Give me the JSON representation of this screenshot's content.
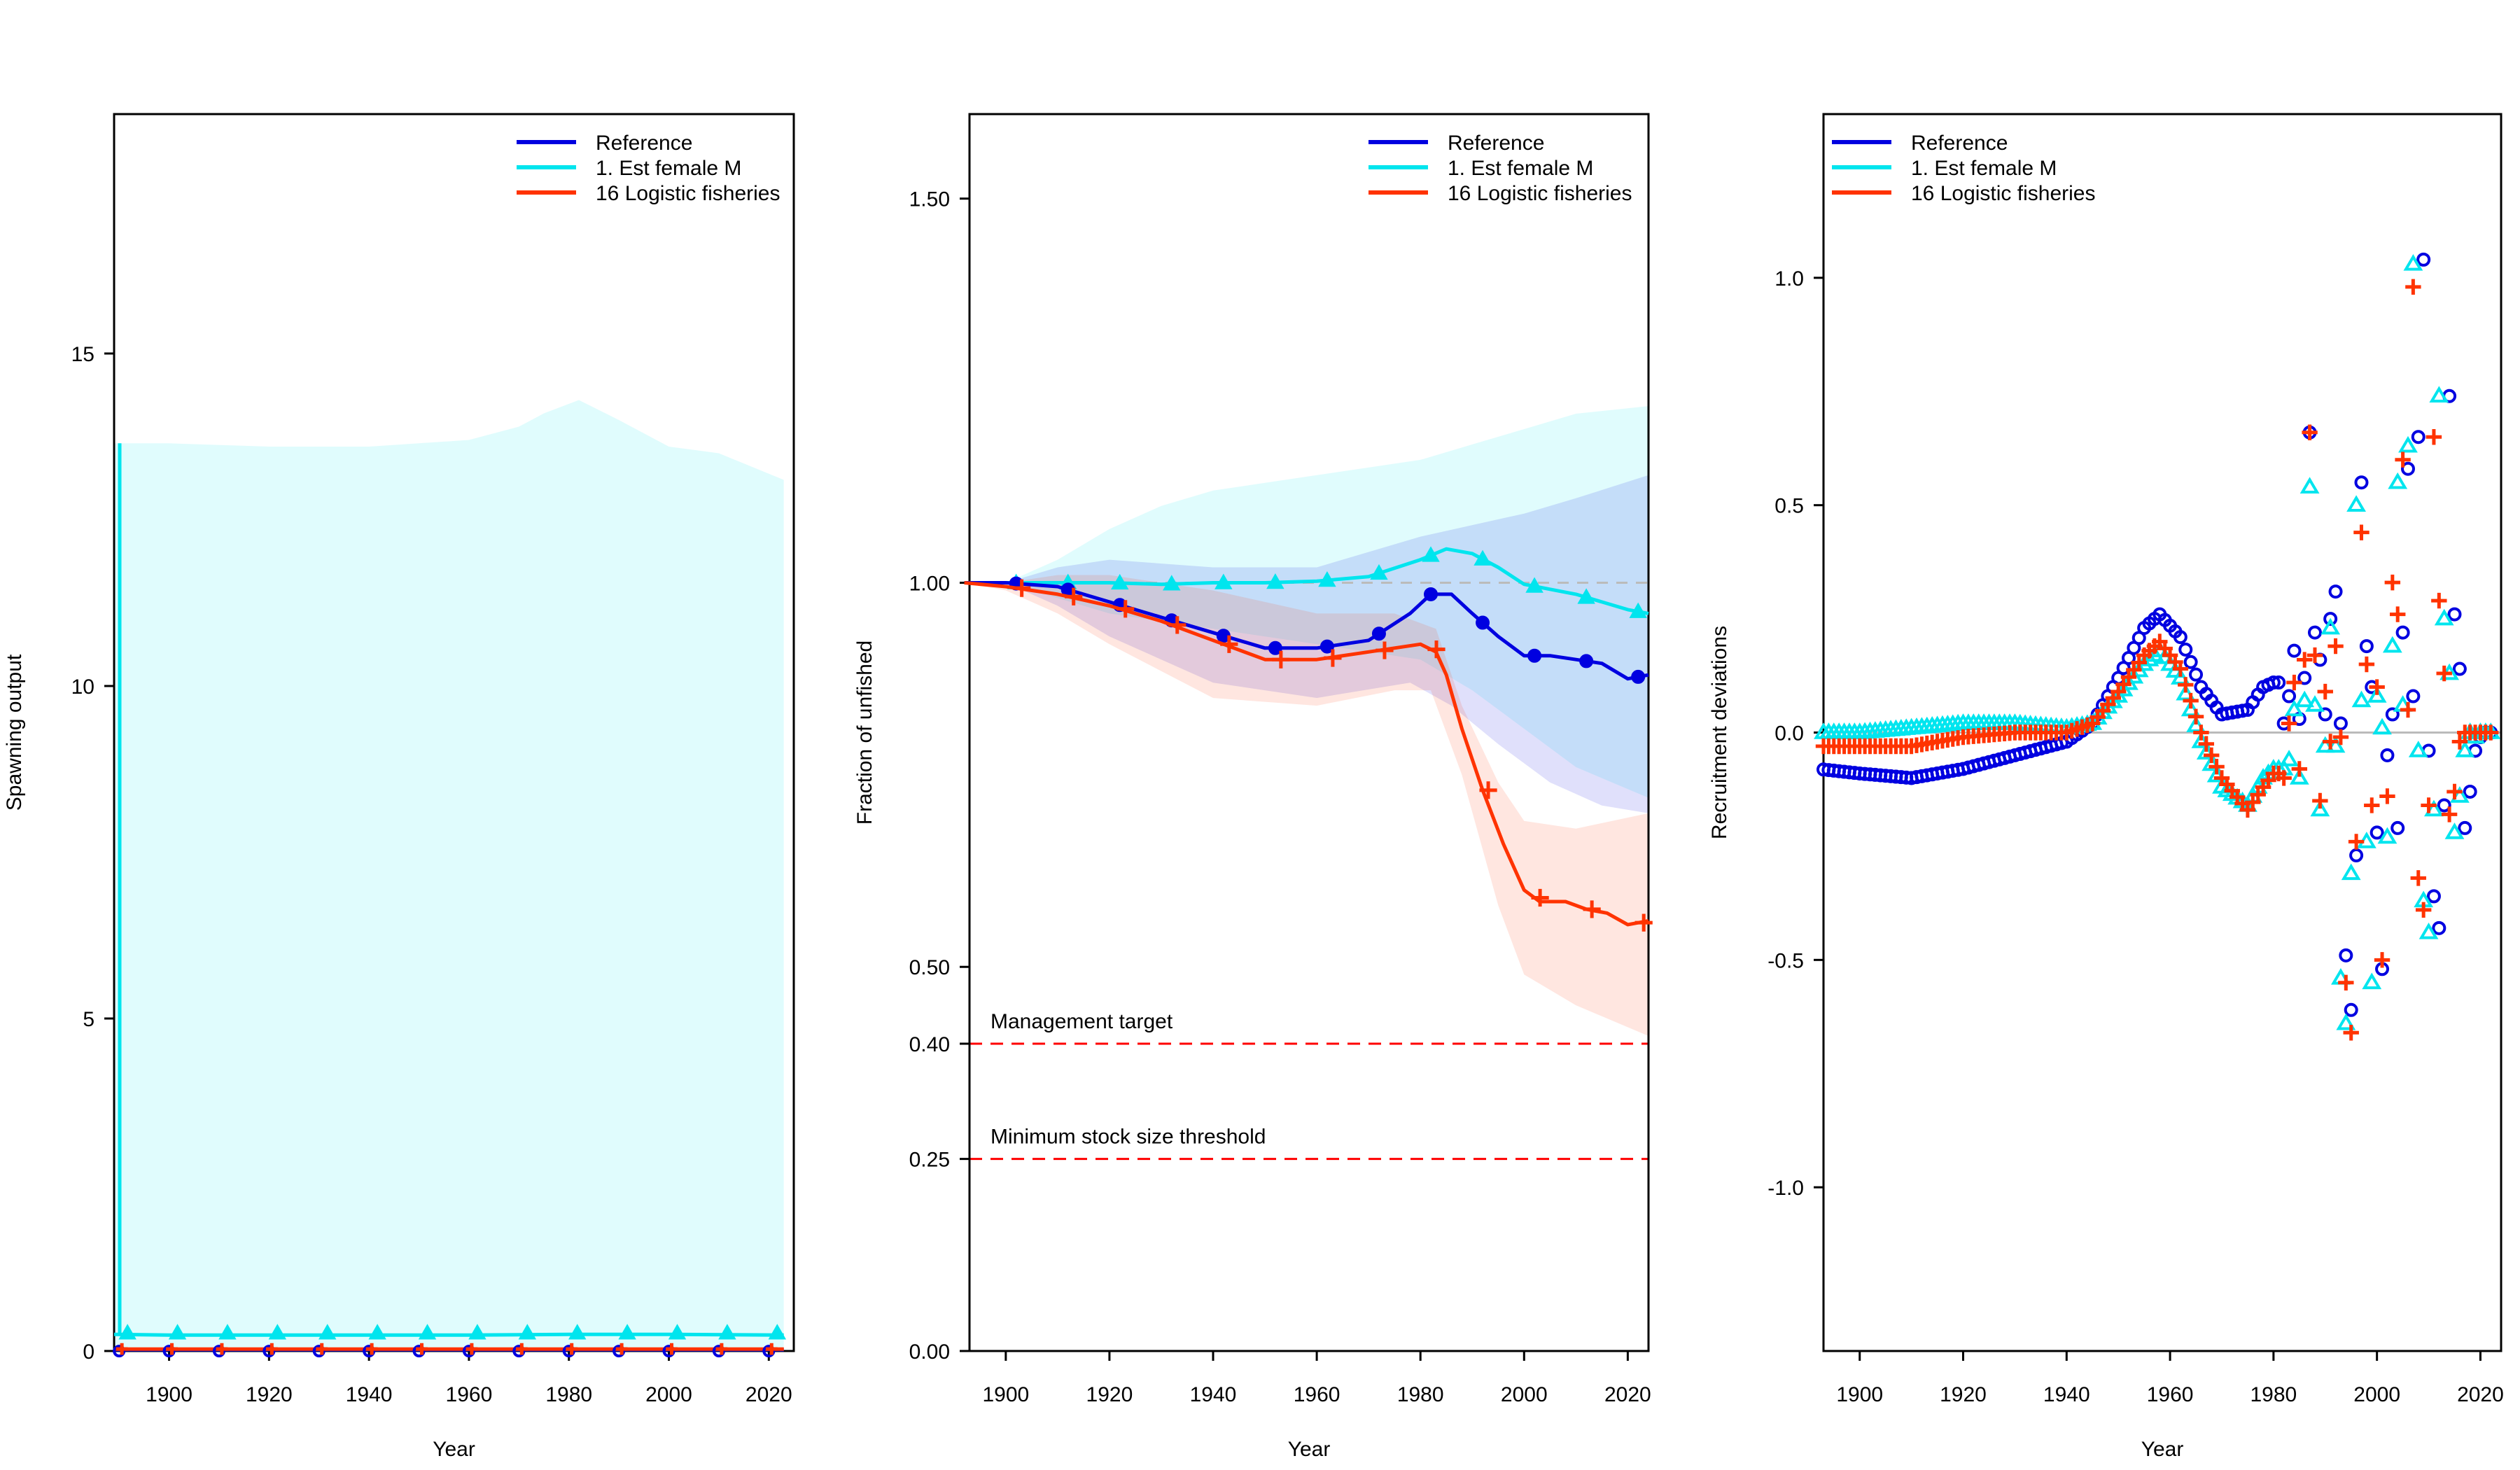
{
  "colors": {
    "reference": "#0000e0",
    "est_female_m": "#00e5ee",
    "logistic": "#ff3300",
    "target_line": "#ff0000",
    "unit_line": "#bbbbbb"
  },
  "legend": {
    "entries": [
      {
        "label": "Reference",
        "color": "#0000e0"
      },
      {
        "label": "1. Est female M",
        "color": "#00e5ee"
      },
      {
        "label": "16 Logistic fisheries",
        "color": "#ff3300"
      }
    ]
  },
  "chart_data": [
    {
      "type": "line",
      "xlabel": "Year",
      "ylabel": "Spawning output",
      "xlim": [
        1889,
        2025
      ],
      "ylim": [
        0,
        18.6
      ],
      "xticks": [
        "1900",
        "1920",
        "1940",
        "1960",
        "1980",
        "2000",
        "2020"
      ],
      "yticks": [
        "0",
        "5",
        "10",
        "15"
      ],
      "grid": false,
      "legend_position": "top-right",
      "series": [
        {
          "name": "Reference",
          "x": [
            1889,
            1900,
            1920,
            1940,
            1960,
            1980,
            2000,
            2023
          ],
          "y": [
            0.02,
            0.02,
            0.02,
            0.02,
            0.02,
            0.02,
            0.02,
            0.02
          ],
          "markers": "circle"
        },
        {
          "name": "1. Est female M",
          "x": [
            1889,
            1900,
            1920,
            1940,
            1960,
            1980,
            2000,
            2023
          ],
          "y": [
            0.25,
            0.24,
            0.24,
            0.24,
            0.24,
            0.25,
            0.25,
            0.24
          ],
          "markers": "triangle",
          "unfished_point": [
            1889,
            13.65
          ],
          "band_upper": [
            [
              1889,
              13.65
            ],
            [
              1900,
              13.65
            ],
            [
              1920,
              13.6
            ],
            [
              1940,
              13.6
            ],
            [
              1960,
              13.7
            ],
            [
              1970,
              13.9
            ],
            [
              1975,
              14.1
            ],
            [
              1982,
              14.3
            ],
            [
              1990,
              14.0
            ],
            [
              2000,
              13.6
            ],
            [
              2010,
              13.5
            ],
            [
              2023,
              13.1
            ]
          ],
          "band_lower": [
            [
              1889,
              0
            ],
            [
              2023,
              0
            ]
          ]
        },
        {
          "name": "16 Logistic fisheries",
          "x": [
            1889,
            1900,
            1920,
            1940,
            1960,
            1980,
            2000,
            2023
          ],
          "y": [
            0.03,
            0.03,
            0.03,
            0.03,
            0.03,
            0.03,
            0.03,
            0.03
          ],
          "markers": "plus"
        }
      ]
    },
    {
      "type": "line",
      "xlabel": "Year",
      "ylabel": "Fraction of unfished",
      "xlim": [
        1893,
        2024
      ],
      "ylim": [
        0,
        1.61
      ],
      "yticks": [
        "0.00",
        "0.25",
        "0.40",
        "0.50",
        "1.00",
        "1.50"
      ],
      "xticks": [
        "1900",
        "1920",
        "1940",
        "1960",
        "1980",
        "2000",
        "2020"
      ],
      "grid": false,
      "legend_position": "top-right",
      "reference_lines": [
        {
          "label": "Management target",
          "value": 0.4
        },
        {
          "label": "Minimum stock size threshold",
          "value": 0.25
        }
      ],
      "series": [
        {
          "name": "Reference",
          "markers": "circle",
          "x": [
            1892,
            1900,
            1910,
            1920,
            1930,
            1940,
            1950,
            1960,
            1970,
            1978,
            1982,
            1986,
            1990,
            1995,
            2000,
            2005,
            2010,
            2015,
            2020,
            2024
          ],
          "y": [
            1.0,
            1.0,
            0.995,
            0.975,
            0.955,
            0.935,
            0.915,
            0.915,
            0.925,
            0.96,
            0.985,
            0.985,
            0.96,
            0.93,
            0.905,
            0.905,
            0.9,
            0.895,
            0.875,
            0.88
          ],
          "band_upper": [
            [
              1892,
              1.0
            ],
            [
              1900,
              1.0
            ],
            [
              1910,
              1.02
            ],
            [
              1920,
              1.03
            ],
            [
              1940,
              1.02
            ],
            [
              1960,
              1.02
            ],
            [
              1980,
              1.06
            ],
            [
              2000,
              1.09
            ],
            [
              2010,
              1.11
            ],
            [
              2024,
              1.14
            ]
          ],
          "band_lower": [
            [
              1892,
              1.0
            ],
            [
              1900,
              1.0
            ],
            [
              1910,
              0.97
            ],
            [
              1920,
              0.93
            ],
            [
              1940,
              0.87
            ],
            [
              1960,
              0.85
            ],
            [
              1978,
              0.87
            ],
            [
              1986,
              0.84
            ],
            [
              1995,
              0.79
            ],
            [
              2005,
              0.74
            ],
            [
              2015,
              0.71
            ],
            [
              2024,
              0.7
            ]
          ]
        },
        {
          "name": "1. Est female M",
          "markers": "triangle",
          "x": [
            1892,
            1900,
            1910,
            1920,
            1930,
            1940,
            1950,
            1960,
            1970,
            1980,
            1985,
            1990,
            1995,
            2000,
            2010,
            2020,
            2024
          ],
          "y": [
            1.0,
            1.0,
            1.0,
            1.0,
            0.998,
            1.0,
            1.0,
            1.002,
            1.008,
            1.03,
            1.044,
            1.038,
            1.02,
            0.998,
            0.985,
            0.965,
            0.96
          ],
          "band_upper": [
            [
              1892,
              1.0
            ],
            [
              1900,
              1.0
            ],
            [
              1910,
              1.03
            ],
            [
              1920,
              1.07
            ],
            [
              1930,
              1.1
            ],
            [
              1940,
              1.12
            ],
            [
              1950,
              1.13
            ],
            [
              1960,
              1.14
            ],
            [
              1980,
              1.16
            ],
            [
              1990,
              1.18
            ],
            [
              2000,
              1.2
            ],
            [
              2010,
              1.22
            ],
            [
              2024,
              1.23
            ]
          ],
          "band_lower": [
            [
              1892,
              1.0
            ],
            [
              1900,
              1.0
            ],
            [
              1910,
              0.98
            ],
            [
              1920,
              0.96
            ],
            [
              1940,
              0.94
            ],
            [
              1960,
              0.92
            ],
            [
              1980,
              0.9
            ],
            [
              1990,
              0.86
            ],
            [
              2000,
              0.81
            ],
            [
              2010,
              0.76
            ],
            [
              2024,
              0.72
            ]
          ]
        },
        {
          "name": "16 Logistic fisheries",
          "markers": "plus",
          "x": [
            1892,
            1900,
            1910,
            1920,
            1930,
            1940,
            1950,
            1960,
            1970,
            1975,
            1980,
            1983,
            1985,
            1988,
            1992,
            1996,
            2000,
            2003,
            2008,
            2012,
            2016,
            2020,
            2024
          ],
          "y": [
            1.0,
            0.995,
            0.985,
            0.97,
            0.95,
            0.925,
            0.9,
            0.9,
            0.91,
            0.915,
            0.92,
            0.91,
            0.88,
            0.81,
            0.73,
            0.66,
            0.6,
            0.585,
            0.585,
            0.575,
            0.57,
            0.555,
            0.56
          ],
          "band_upper": [
            [
              1892,
              1.0
            ],
            [
              1900,
              1.0
            ],
            [
              1910,
              1.01
            ],
            [
              1920,
              1.01
            ],
            [
              1940,
              0.99
            ],
            [
              1960,
              0.96
            ],
            [
              1975,
              0.96
            ],
            [
              1983,
              0.94
            ],
            [
              1988,
              0.84
            ],
            [
              1995,
              0.74
            ],
            [
              2000,
              0.69
            ],
            [
              2010,
              0.68
            ],
            [
              2024,
              0.7
            ]
          ],
          "band_lower": [
            [
              1892,
              1.0
            ],
            [
              1900,
              0.99
            ],
            [
              1910,
              0.96
            ],
            [
              1920,
              0.92
            ],
            [
              1940,
              0.85
            ],
            [
              1960,
              0.84
            ],
            [
              1975,
              0.86
            ],
            [
              1982,
              0.86
            ],
            [
              1988,
              0.75
            ],
            [
              1995,
              0.58
            ],
            [
              2000,
              0.49
            ],
            [
              2010,
              0.45
            ],
            [
              2024,
              0.41
            ]
          ]
        }
      ]
    },
    {
      "type": "scatter",
      "xlabel": "Year",
      "ylabel": "Recruitment deviations",
      "xlim": [
        1893,
        2024
      ],
      "ylim": [
        -1.36,
        1.36
      ],
      "yticks": [
        "-1.0",
        "-0.5",
        "0.0",
        "0.5",
        "1.0"
      ],
      "xticks": [
        "1900",
        "1920",
        "1940",
        "1960",
        "1980",
        "2000",
        "2020"
      ],
      "grid": false,
      "legend_position": "top-left",
      "series": [
        {
          "name": "Reference",
          "markers": "circle",
          "early_x": [
            1892,
            1900,
            1910,
            1920,
            1930,
            1940,
            1945,
            1950,
            1955,
            1958,
            1962,
            1966,
            1970,
            1975,
            1978,
            1980
          ],
          "early_y": [
            -0.08,
            -0.09,
            -0.1,
            -0.08,
            -0.05,
            -0.02,
            0.02,
            0.12,
            0.23,
            0.26,
            0.21,
            0.1,
            0.04,
            0.05,
            0.1,
            0.11
          ],
          "late_x": [
            1982,
            1983,
            1984,
            1985,
            1986,
            1987,
            1988,
            1989,
            1990,
            1991,
            1992,
            1993,
            1994,
            1995,
            1996,
            1997,
            1998,
            1999,
            2000,
            2001,
            2002,
            2003,
            2004,
            2005,
            2006,
            2007,
            2008,
            2009,
            2010,
            2011,
            2012,
            2013,
            2014,
            2015,
            2016,
            2017,
            2018,
            2019,
            2020,
            2021,
            2022
          ],
          "late_y": [
            0.02,
            0.08,
            0.18,
            0.03,
            0.12,
            0.66,
            0.22,
            0.16,
            0.04,
            0.25,
            0.31,
            0.02,
            -0.49,
            -0.61,
            -0.27,
            0.55,
            0.19,
            0.1,
            -0.22,
            -0.52,
            -0.05,
            0.04,
            -0.21,
            0.22,
            0.58,
            0.08,
            0.65,
            1.04,
            -0.04,
            -0.36,
            -0.43,
            -0.16,
            0.74,
            0.26,
            0.14,
            -0.21,
            -0.13,
            -0.04,
            -0.01,
            0.0,
            0.0
          ]
        },
        {
          "name": "1. Est female M",
          "markers": "triangle",
          "early_x": [
            1892,
            1900,
            1910,
            1920,
            1930,
            1940,
            1945,
            1950,
            1955,
            1958,
            1962,
            1966,
            1970,
            1975,
            1978,
            1980
          ],
          "early_y": [
            0.0,
            0.0,
            0.01,
            0.02,
            0.02,
            0.01,
            0.02,
            0.08,
            0.15,
            0.18,
            0.12,
            -0.02,
            -0.12,
            -0.16,
            -0.1,
            -0.08
          ],
          "late_x": [
            1982,
            1983,
            1984,
            1985,
            1986,
            1987,
            1988,
            1989,
            1990,
            1991,
            1992,
            1993,
            1994,
            1995,
            1996,
            1997,
            1998,
            1999,
            2000,
            2001,
            2002,
            2003,
            2004,
            2005,
            2006,
            2007,
            2008,
            2009,
            2010,
            2011,
            2012,
            2013,
            2014,
            2015,
            2016,
            2017,
            2018,
            2019,
            2020,
            2021,
            2022
          ],
          "late_y": [
            -0.08,
            -0.06,
            0.05,
            -0.1,
            0.07,
            0.54,
            0.06,
            -0.17,
            -0.03,
            0.23,
            -0.03,
            -0.54,
            -0.64,
            -0.31,
            0.5,
            0.07,
            -0.24,
            -0.55,
            0.08,
            0.01,
            -0.23,
            0.19,
            0.55,
            0.06,
            0.63,
            1.03,
            -0.04,
            -0.37,
            -0.44,
            -0.17,
            0.74,
            0.25,
            0.13,
            -0.22,
            -0.14,
            -0.04,
            0.0,
            -0.01,
            0.0,
            0.0,
            0.0
          ]
        },
        {
          "name": "16 Logistic fisheries",
          "markers": "plus",
          "early_x": [
            1892,
            1900,
            1910,
            1920,
            1930,
            1940,
            1945,
            1950,
            1955,
            1958,
            1962,
            1966,
            1970,
            1975,
            1978,
            1980
          ],
          "early_y": [
            -0.03,
            -0.03,
            -0.03,
            -0.01,
            0.0,
            0.0,
            0.02,
            0.09,
            0.17,
            0.2,
            0.14,
            0.0,
            -0.1,
            -0.17,
            -0.12,
            -0.09
          ],
          "late_x": [
            1982,
            1983,
            1984,
            1985,
            1986,
            1987,
            1988,
            1989,
            1990,
            1991,
            1992,
            1993,
            1994,
            1995,
            1996,
            1997,
            1998,
            1999,
            2000,
            2001,
            2002,
            2003,
            2004,
            2005,
            2006,
            2007,
            2008,
            2009,
            2010,
            2011,
            2012,
            2013,
            2014,
            2015,
            2016,
            2017,
            2018,
            2019,
            2020,
            2021,
            2022
          ],
          "late_y": [
            -0.1,
            0.02,
            0.11,
            -0.08,
            0.16,
            0.66,
            0.17,
            -0.15,
            0.09,
            -0.02,
            0.19,
            -0.01,
            -0.55,
            -0.66,
            -0.24,
            0.44,
            0.15,
            -0.16,
            0.1,
            -0.5,
            -0.14,
            0.33,
            0.26,
            0.6,
            0.05,
            0.98,
            -0.32,
            -0.39,
            -0.16,
            0.65,
            0.29,
            0.13,
            -0.18,
            -0.13,
            -0.02,
            0.0,
            0.0,
            0.0,
            0.0,
            0.0,
            0.0
          ]
        }
      ]
    }
  ]
}
